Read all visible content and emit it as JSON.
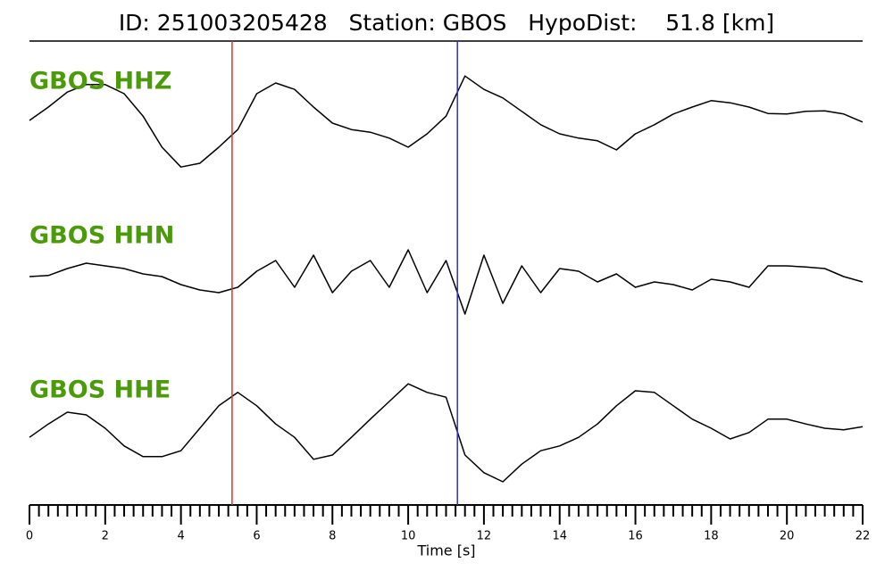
{
  "chart_data": {
    "type": "seismogram",
    "title": "ID: 251003205428   Station: GBOS   HypoDist:    51.8 [km]",
    "xlabel": "Time [s]",
    "xlim": [
      0,
      22
    ],
    "xticks": [
      0,
      2,
      4,
      6,
      8,
      10,
      12,
      14,
      16,
      18,
      20,
      22
    ],
    "xminorticks": [
      0.25,
      0.5,
      0.75,
      1,
      1.25,
      1.5,
      1.75,
      2.25,
      2.5,
      2.75,
      3,
      3.25,
      3.5,
      3.75,
      4.25,
      4.5,
      4.75,
      5,
      5.25,
      5.5,
      5.75,
      6.25,
      6.5,
      6.75,
      7,
      7.25,
      7.5,
      7.75,
      8.25,
      8.5,
      8.75,
      9,
      9.25,
      9.5,
      9.75,
      10.25,
      10.5,
      10.75,
      11,
      11.25,
      11.5,
      11.75,
      12.25,
      12.5,
      12.75,
      13,
      13.25,
      13.5,
      13.75,
      14.25,
      14.5,
      14.75,
      15,
      15.25,
      15.5,
      15.75,
      16.25,
      16.5,
      16.75,
      17,
      17.25,
      17.5,
      17.75,
      18.25,
      18.5,
      18.75,
      19,
      19.25,
      19.5,
      19.75,
      20.25,
      20.5,
      20.75,
      21,
      21.25,
      21.5,
      21.75
    ],
    "ylim": [
      -1,
      1
    ],
    "label_color": "#4a9a0a",
    "x": [
      0,
      0.5,
      1,
      1.5,
      2,
      2.5,
      3,
      3.5,
      4,
      4.5,
      5,
      5.5,
      6,
      6.5,
      7,
      7.5,
      8,
      8.5,
      9,
      9.5,
      10,
      10.5,
      11,
      11.5,
      12,
      12.5,
      13,
      13.5,
      14,
      14.5,
      15,
      15.5,
      16,
      16.5,
      17,
      17.5,
      18,
      18.5,
      19,
      19.5,
      20,
      20.5,
      21,
      21.5,
      22
    ],
    "series": [
      {
        "name": "GBOS HHZ",
        "color": "#000000",
        "values": [
          0,
          0.25,
          0.53,
          0.67,
          0.67,
          0.5,
          0.08,
          -0.5,
          -0.87,
          -0.8,
          -0.5,
          -0.17,
          0.5,
          0.7,
          0.58,
          0.25,
          -0.05,
          -0.17,
          -0.22,
          -0.33,
          -0.5,
          -0.25,
          0.08,
          0.83,
          0.58,
          0.42,
          0.17,
          -0.08,
          -0.25,
          -0.33,
          -0.38,
          -0.55,
          -0.25,
          -0.08,
          0.12,
          0.25,
          0.37,
          0.33,
          0.25,
          0.13,
          0.12,
          0.17,
          0.18,
          0.12,
          -0.03
        ]
      },
      {
        "name": "GBOS HHN",
        "color": "#000000",
        "values": [
          0,
          0.02,
          0.15,
          0.25,
          0.2,
          0.15,
          0.05,
          0,
          -0.15,
          -0.25,
          -0.3,
          -0.2,
          0.1,
          0.3,
          -0.2,
          0.4,
          -0.3,
          0.1,
          0.3,
          -0.2,
          0.5,
          -0.3,
          0.3,
          -0.7,
          0.4,
          -0.5,
          0.2,
          -0.3,
          0.15,
          0.1,
          -0.1,
          0.05,
          -0.2,
          -0.1,
          -0.15,
          -0.25,
          -0.05,
          -0.1,
          -0.2,
          0.2,
          0.2,
          0.18,
          0.15,
          0,
          -0.1
        ]
      },
      {
        "name": "GBOS HHE",
        "color": "#000000",
        "values": [
          -0.17,
          0.08,
          0.3,
          0.25,
          0,
          -0.33,
          -0.53,
          -0.53,
          -0.42,
          0,
          0.42,
          0.67,
          0.42,
          0.08,
          -0.17,
          -0.58,
          -0.5,
          -0.17,
          0.17,
          0.5,
          0.83,
          0.67,
          0.58,
          -0.5,
          -0.83,
          -1,
          -0.67,
          -0.42,
          -0.33,
          -0.17,
          0.08,
          0.42,
          0.7,
          0.67,
          0.42,
          0.17,
          0,
          -0.2,
          -0.08,
          0.17,
          0.17,
          0.08,
          0,
          -0.03,
          0.03
        ]
      }
    ],
    "picks": [
      {
        "time": 5.35,
        "color": "#e0302c"
      },
      {
        "time": 11.3,
        "color": "#3333bb"
      }
    ]
  }
}
